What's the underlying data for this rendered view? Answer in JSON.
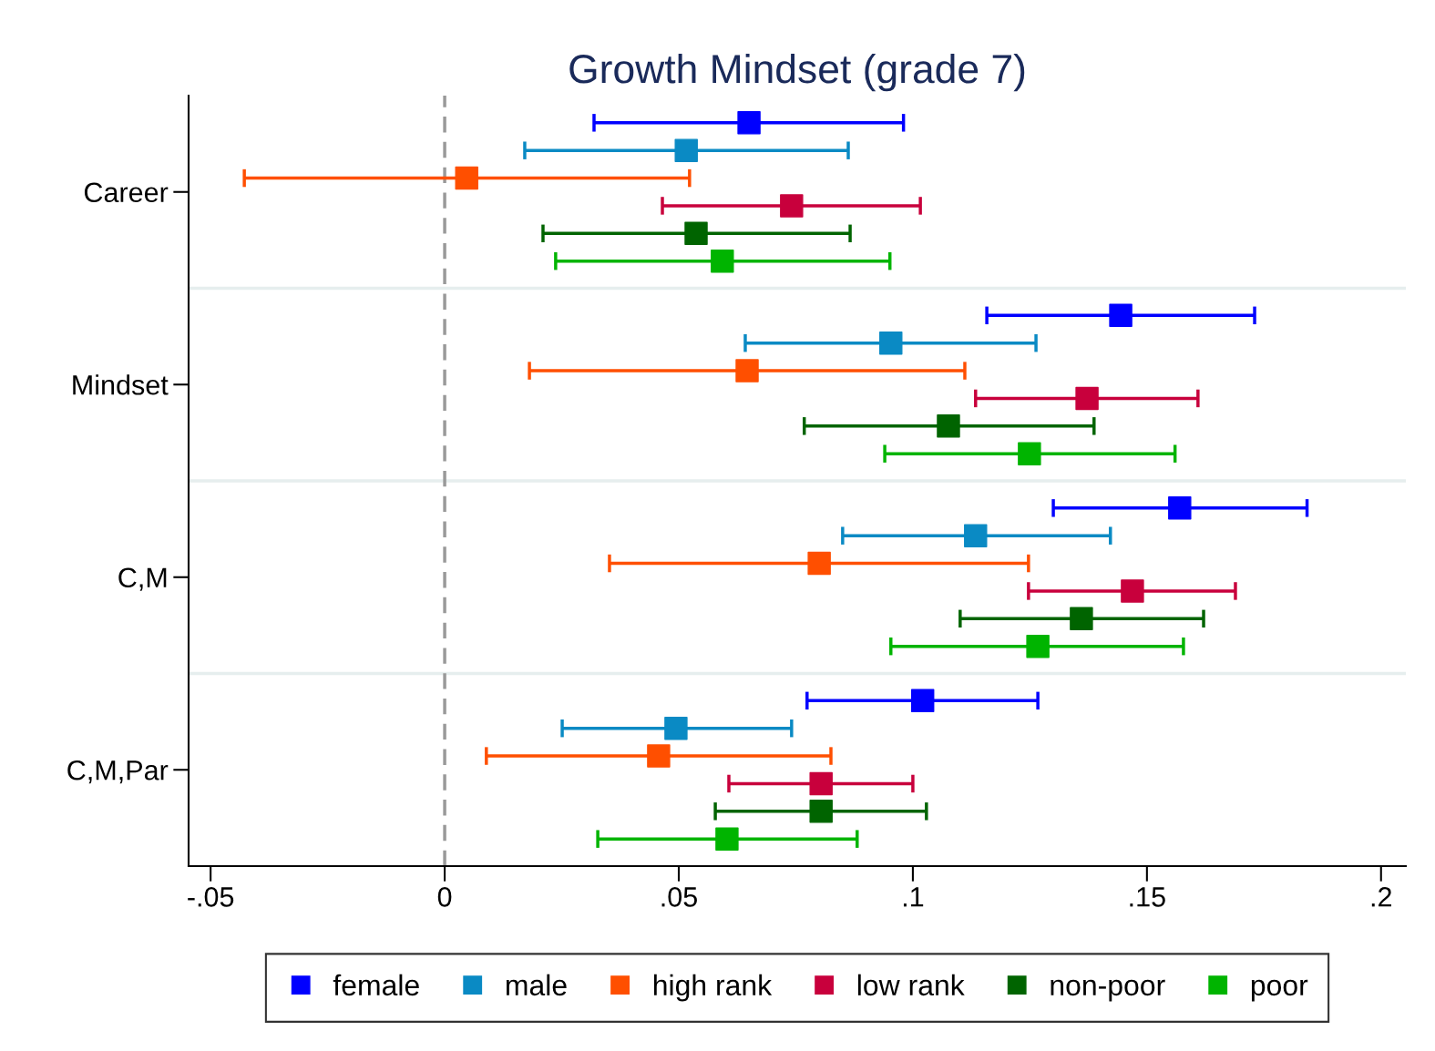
{
  "chart_data": {
    "type": "scatter",
    "orientation": "horizontal",
    "title": "Growth Mindset (grade 7)",
    "categories": [
      "Career",
      "Mindset",
      "C,M",
      "C,M,Par"
    ],
    "series": [
      {
        "name": "female",
        "color": "#0000ff",
        "values": [
          0.065,
          0.1444,
          0.157,
          0.1021
        ],
        "errors": [
          [
            0.0319,
            0.098
          ],
          [
            0.1158,
            0.173
          ],
          [
            0.13,
            0.1842
          ],
          [
            0.0774,
            0.1267
          ]
        ]
      },
      {
        "name": "male",
        "color": "#0a8ac4",
        "values": [
          0.0516,
          0.0953,
          0.1134,
          0.0494
        ],
        "errors": [
          [
            0.0171,
            0.0862
          ],
          [
            0.0642,
            0.1263
          ],
          [
            0.085,
            0.1422
          ],
          [
            0.0251,
            0.0741
          ]
        ]
      },
      {
        "name": "high rank",
        "color": "#ff4f00",
        "values": [
          0.0047,
          0.0646,
          0.08,
          0.0457
        ],
        "errors": [
          [
            -0.0428,
            0.0523
          ],
          [
            0.0181,
            0.1111
          ],
          [
            0.0352,
            0.1247
          ],
          [
            0.0089,
            0.0825
          ]
        ]
      },
      {
        "name": "low rank",
        "color": "#c8003c",
        "values": [
          0.0741,
          0.1372,
          0.1469,
          0.0804
        ],
        "errors": [
          [
            0.0465,
            0.1016
          ],
          [
            0.1134,
            0.1609
          ],
          [
            0.1247,
            0.1689
          ],
          [
            0.0607,
            0.1
          ]
        ]
      },
      {
        "name": "non-poor",
        "color": "#006400",
        "values": [
          0.0537,
          0.1076,
          0.136,
          0.0804
        ],
        "errors": [
          [
            0.021,
            0.0866
          ],
          [
            0.0768,
            0.1387
          ],
          [
            0.1101,
            0.1621
          ],
          [
            0.0578,
            0.1029
          ]
        ]
      },
      {
        "name": "poor",
        "color": "#00b400",
        "values": [
          0.0593,
          0.1249,
          0.1267,
          0.0603
        ],
        "errors": [
          [
            0.0237,
            0.0951
          ],
          [
            0.094,
            0.156
          ],
          [
            0.0953,
            0.1578
          ],
          [
            0.0327,
            0.0881
          ]
        ]
      }
    ],
    "xlim": [
      -0.0547,
      0.2053
    ],
    "xticks": [
      {
        "value": -0.05,
        "label": "-.05"
      },
      0,
      {
        "value": 0.05,
        "label": ".05"
      },
      {
        "value": 0.1,
        "label": ".1"
      },
      {
        "value": 0.15,
        "label": ".15"
      },
      {
        "value": 0.2,
        "label": ".2"
      }
    ],
    "ref_lines": [
      {
        "axis": "x",
        "value": 0,
        "color": "#999999",
        "line_style": "dashed"
      }
    ],
    "grid": "y",
    "legend": "bottom",
    "marker": "square"
  }
}
